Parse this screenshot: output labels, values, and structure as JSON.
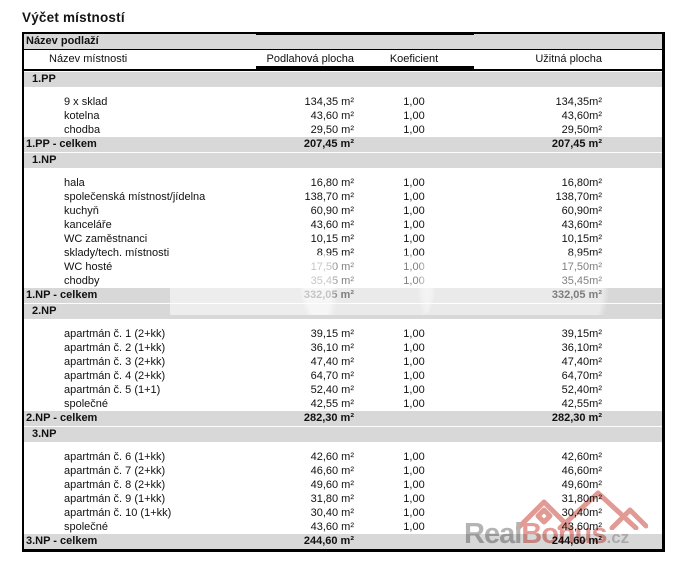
{
  "title": "Výčet místností",
  "table": {
    "header_band": "Název podlaží",
    "columns": [
      "Název místnosti",
      "Podlahová plocha",
      "Koeficient",
      "Užitná plocha"
    ],
    "sections": [
      {
        "label": "1.PP",
        "rows": [
          {
            "name": "9 x sklad",
            "floor": "134,35 m²",
            "koef": "1,00",
            "usable": "134,35m²"
          },
          {
            "name": "kotelna",
            "floor": "43,60 m²",
            "koef": "1,00",
            "usable": "43,60m²"
          },
          {
            "name": "chodba",
            "floor": "29,50 m²",
            "koef": "1,00",
            "usable": "29,50m²"
          }
        ],
        "total": {
          "label": "1.PP - celkem",
          "floor": "207,45 m²",
          "usable": "207,45 m²"
        }
      },
      {
        "label": "1.NP",
        "rows": [
          {
            "name": "hala",
            "floor": "16,80 m²",
            "koef": "1,00",
            "usable": "16,80m²"
          },
          {
            "name": "společenská místnost/jídelna",
            "floor": "138,70 m²",
            "koef": "1,00",
            "usable": "138,70m²"
          },
          {
            "name": "kuchyň",
            "floor": "60,90 m²",
            "koef": "1,00",
            "usable": "60,90m²"
          },
          {
            "name": "kanceláře",
            "floor": "43,60 m²",
            "koef": "1,00",
            "usable": "43,60m²"
          },
          {
            "name": "WC zaměstnanci",
            "floor": "10,15 m²",
            "koef": "1,00",
            "usable": "10,15m²"
          },
          {
            "name": "sklady/tech. místnosti",
            "floor": "8,95 m²",
            "koef": "1,00",
            "usable": "8,95m²"
          },
          {
            "name": "WC hosté",
            "floor": "17,50 m²",
            "koef": "1,00",
            "usable": "17,50m²"
          },
          {
            "name": "chodby",
            "floor": "35,45 m²",
            "koef": "1,00",
            "usable": "35,45m²"
          }
        ],
        "total": {
          "label": "1.NP - celkem",
          "floor": "332,05 m²",
          "usable": "332,05 m²"
        }
      },
      {
        "label": "2.NP",
        "rows": [
          {
            "name": "apartmán č. 1 (2+kk)",
            "floor": "39,15 m²",
            "koef": "1,00",
            "usable": "39,15m²"
          },
          {
            "name": "apartmán č. 2 (1+kk)",
            "floor": "36,10 m²",
            "koef": "1,00",
            "usable": "36,10m²"
          },
          {
            "name": "apartmán č. 3 (2+kk)",
            "floor": "47,40 m²",
            "koef": "1,00",
            "usable": "47,40m²"
          },
          {
            "name": "apartmán č. 4 (2+kk)",
            "floor": "64,70 m²",
            "koef": "1,00",
            "usable": "64,70m²"
          },
          {
            "name": "apartmán č. 5 (1+1)",
            "floor": "52,40 m²",
            "koef": "1,00",
            "usable": "52,40m²"
          },
          {
            "name": "společné",
            "floor": "42,55 m²",
            "koef": "1,00",
            "usable": "42,55m²"
          }
        ],
        "total": {
          "label": "2.NP - celkem",
          "floor": "282,30 m²",
          "usable": "282,30 m²"
        }
      },
      {
        "label": "3.NP",
        "rows": [
          {
            "name": "apartmán č. 6 (1+kk)",
            "floor": "42,60 m²",
            "koef": "1,00",
            "usable": "42,60m²"
          },
          {
            "name": "apartmán č. 7 (2+kk)",
            "floor": "46,60 m²",
            "koef": "1,00",
            "usable": "46,60m²"
          },
          {
            "name": "apartmán č. 8 (2+kk)",
            "floor": "49,60 m²",
            "koef": "1,00",
            "usable": "49,60m²"
          },
          {
            "name": "apartmán č. 9 (1+kk)",
            "floor": "31,80 m²",
            "koef": "1,00",
            "usable": "31,80m²"
          },
          {
            "name": "apartmán č. 10 (1+kk)",
            "floor": "30,40 m²",
            "koef": "1,00",
            "usable": "30,40m²"
          },
          {
            "name": "společné",
            "floor": "43,60 m²",
            "koef": "1,00",
            "usable": "43,60m²"
          }
        ],
        "total": {
          "label": "3.NP - celkem",
          "floor": "244,60 m²",
          "usable": "244,60 m²"
        }
      }
    ]
  },
  "watermark": {
    "real": "Real",
    "bonus": "Bonus",
    "tld": ".cz",
    "real_color": "#b4b4b4",
    "bonus_color": "#e59c96",
    "tld_color": "#c9c9c9",
    "logo_color": "#e29b94"
  }
}
